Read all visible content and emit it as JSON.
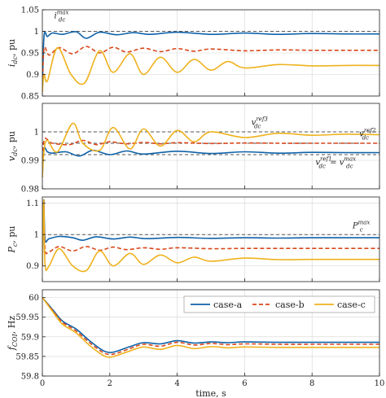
{
  "colors": {
    "case_a": "#0f62a8",
    "case_b": "#d9471a",
    "case_c": "#efb21e",
    "ref": "#555555"
  },
  "chart_data": [
    {
      "type": "line",
      "ylabel": "i_dc, pu",
      "xlim": [
        0,
        10
      ],
      "ylim": [
        0.85,
        1.05
      ],
      "yticks": [
        "0.85",
        "0.9",
        "0.95",
        "1",
        "1.05"
      ],
      "xticks": [
        "0",
        "2",
        "4",
        "6",
        "8",
        "10"
      ],
      "grid": true,
      "reference_lines": [
        {
          "y": 1.0
        }
      ],
      "annotations": [
        {
          "text": "i_dc^max",
          "x": 0.35,
          "y": 1.03
        }
      ],
      "series": [
        {
          "name": "case-a",
          "x": [
            0,
            0.05,
            0.15,
            0.3,
            0.6,
            1.0,
            1.3,
            1.7,
            2.2,
            2.7,
            3.2,
            4,
            5,
            6,
            7,
            8,
            9,
            10
          ],
          "y": [
            0.86,
            0.99,
            0.988,
            0.996,
            0.993,
            0.999,
            0.984,
            0.998,
            0.992,
            0.997,
            0.993,
            0.998,
            0.993,
            0.996,
            0.993,
            0.995,
            0.994,
            0.994
          ]
        },
        {
          "name": "case-b",
          "x": [
            0,
            0.05,
            0.2,
            0.5,
            0.9,
            1.3,
            1.7,
            2.1,
            2.5,
            3,
            3.5,
            4,
            4.5,
            5,
            6,
            7,
            8,
            9,
            10
          ],
          "y": [
            0.86,
            0.96,
            0.945,
            0.962,
            0.948,
            0.965,
            0.95,
            0.963,
            0.952,
            0.961,
            0.953,
            0.96,
            0.954,
            0.959,
            0.955,
            0.957,
            0.956,
            0.956,
            0.956
          ]
        },
        {
          "name": "case-c",
          "x": [
            0,
            0.05,
            0.15,
            0.45,
            0.85,
            1.25,
            1.7,
            2.1,
            2.6,
            3.0,
            3.5,
            4.0,
            4.5,
            5,
            5.5,
            6,
            7,
            8,
            9,
            10
          ],
          "y": [
            0.86,
            0.9,
            0.885,
            0.962,
            0.9,
            0.88,
            0.955,
            0.905,
            0.948,
            0.9,
            0.94,
            0.905,
            0.935,
            0.91,
            0.93,
            0.915,
            0.923,
            0.92,
            0.921,
            0.921
          ]
        }
      ]
    },
    {
      "type": "line",
      "ylabel": "v_dc, pu",
      "xlim": [
        0,
        10
      ],
      "ylim": [
        0.98,
        1.01
      ],
      "yticks": [
        "0.98",
        "0.99",
        "1"
      ],
      "xticks": [
        "0",
        "2",
        "4",
        "6",
        "8",
        "10"
      ],
      "grid": true,
      "reference_lines": [
        {
          "y": 1.0
        },
        {
          "y": 0.996
        },
        {
          "y": 0.992
        }
      ],
      "annotations": [
        {
          "text": "v_dc^ref3",
          "x": 6.2,
          "y": 1.0025
        },
        {
          "text": "v_dc^ref2",
          "x": 9.4,
          "y": 0.9985
        },
        {
          "text": "v_dc^ref1 = v_dc^max",
          "x": 8.1,
          "y": 0.9885
        }
      ],
      "series": [
        {
          "name": "case-a",
          "x": [
            0,
            0.05,
            0.15,
            0.3,
            0.7,
            1.1,
            1.5,
            2,
            2.5,
            3,
            4,
            5,
            6,
            7,
            8,
            9,
            10
          ],
          "y": [
            0.984,
            0.994,
            0.993,
            0.9925,
            0.993,
            0.9915,
            0.9935,
            0.992,
            0.9933,
            0.9922,
            0.9932,
            0.9924,
            0.993,
            0.9925,
            0.9928,
            0.9927,
            0.9927
          ]
        },
        {
          "name": "case-b",
          "x": [
            0,
            0.05,
            0.3,
            0.8,
            1.2,
            1.6,
            2.0,
            2.5,
            3,
            3.5,
            4,
            5,
            6,
            7,
            8,
            9,
            10
          ],
          "y": [
            0.984,
            0.997,
            0.996,
            0.9955,
            0.997,
            0.9955,
            0.9965,
            0.9958,
            0.9963,
            0.9958,
            0.9962,
            0.9959,
            0.9961,
            0.996,
            0.996,
            0.996,
            0.996
          ]
        },
        {
          "name": "case-c",
          "x": [
            0,
            0.05,
            0.15,
            0.45,
            0.9,
            1.2,
            1.7,
            2.1,
            2.6,
            3.0,
            3.5,
            4,
            4.5,
            5,
            6,
            7,
            8,
            9,
            10
          ],
          "y": [
            0.984,
            0.9935,
            0.997,
            0.993,
            1.003,
            0.996,
            0.9935,
            1.0015,
            0.994,
            1.001,
            0.995,
            1.0005,
            0.9965,
            1.0,
            0.998,
            0.9995,
            0.9988,
            0.9992,
            0.999
          ]
        }
      ]
    },
    {
      "type": "line",
      "ylabel": "P_c, pu",
      "xlim": [
        0,
        10
      ],
      "ylim": [
        0.85,
        1.12
      ],
      "yticks": [
        "0.9",
        "1",
        "1.1"
      ],
      "xticks": [
        "0",
        "2",
        "4",
        "6",
        "8",
        "10"
      ],
      "grid": true,
      "reference_lines": [
        {
          "y": 1.0
        }
      ],
      "annotations": [
        {
          "text": "P_c^max",
          "x": 9.2,
          "y": 1.02
        }
      ],
      "series": [
        {
          "name": "case-a",
          "x": [
            0,
            0.04,
            0.08,
            0.2,
            0.5,
            0.9,
            1.2,
            1.6,
            2.1,
            2.6,
            3.1,
            4,
            5,
            6,
            7,
            8,
            9,
            10
          ],
          "y": [
            0.9,
            1.11,
            0.985,
            0.987,
            0.994,
            0.99,
            0.982,
            0.993,
            0.986,
            0.992,
            0.987,
            0.991,
            0.988,
            0.99,
            0.989,
            0.99,
            0.99,
            0.99
          ]
        },
        {
          "name": "case-b",
          "x": [
            0,
            0.04,
            0.08,
            0.2,
            0.5,
            0.9,
            1.3,
            1.7,
            2.1,
            2.5,
            3.0,
            3.5,
            4,
            5,
            6,
            7,
            8,
            9,
            10
          ],
          "y": [
            0.9,
            1.11,
            0.955,
            0.945,
            0.962,
            0.948,
            0.962,
            0.95,
            0.96,
            0.952,
            0.958,
            0.953,
            0.958,
            0.955,
            0.956,
            0.956,
            0.956,
            0.956,
            0.956
          ]
        },
        {
          "name": "case-c",
          "x": [
            0,
            0.04,
            0.08,
            0.2,
            0.5,
            0.9,
            1.3,
            1.7,
            2.1,
            2.6,
            3.0,
            3.5,
            4,
            4.5,
            5,
            6,
            7,
            8,
            9,
            10
          ],
          "y": [
            0.9,
            1.11,
            0.905,
            0.9,
            0.955,
            0.9,
            0.885,
            0.948,
            0.9,
            0.94,
            0.905,
            0.935,
            0.91,
            0.928,
            0.915,
            0.925,
            0.92,
            0.921,
            0.921,
            0.921
          ]
        }
      ]
    },
    {
      "type": "line",
      "ylabel": "f_COI, Hz",
      "xlabel": "time, s",
      "xlim": [
        0,
        10
      ],
      "ylim": [
        59.8,
        60.02
      ],
      "yticks": [
        "59.8",
        "59.85",
        "59.9",
        "59.95",
        "60"
      ],
      "xticks": [
        "0",
        "2",
        "4",
        "6",
        "8",
        "10"
      ],
      "grid": true,
      "legend": {
        "placement": "top-right",
        "orientation": "horizontal"
      },
      "series": [
        {
          "name": "case-a",
          "x": [
            0,
            0.3,
            0.6,
            1.0,
            1.4,
            1.8,
            2.0,
            2.2,
            2.6,
            3.0,
            3.5,
            4.0,
            4.5,
            5,
            5.5,
            6,
            7,
            8,
            9,
            10
          ],
          "y": [
            60.0,
            59.97,
            59.94,
            59.92,
            59.89,
            59.865,
            59.86,
            59.863,
            59.875,
            59.885,
            59.882,
            59.89,
            59.884,
            59.887,
            59.885,
            59.887,
            59.886,
            59.886,
            59.886,
            59.886
          ]
        },
        {
          "name": "case-b",
          "x": [
            0,
            0.3,
            0.6,
            1.0,
            1.4,
            1.8,
            2.0,
            2.2,
            2.6,
            3.0,
            3.5,
            4.0,
            4.5,
            5,
            5.5,
            6,
            7,
            8,
            9,
            10
          ],
          "y": [
            60.0,
            59.968,
            59.937,
            59.915,
            59.885,
            59.86,
            59.855,
            59.858,
            59.87,
            59.881,
            59.876,
            59.886,
            59.879,
            59.883,
            59.88,
            59.882,
            59.881,
            59.881,
            59.881,
            59.881
          ]
        },
        {
          "name": "case-c",
          "x": [
            0,
            0.3,
            0.6,
            1.0,
            1.4,
            1.8,
            2.0,
            2.2,
            2.6,
            3.0,
            3.5,
            4.0,
            4.5,
            5,
            5.5,
            6,
            7,
            8,
            9,
            10
          ],
          "y": [
            60.0,
            59.965,
            59.932,
            59.91,
            59.878,
            59.853,
            59.848,
            59.852,
            59.864,
            59.874,
            59.868,
            59.878,
            59.87,
            59.875,
            59.872,
            59.874,
            59.873,
            59.873,
            59.873,
            59.873
          ]
        }
      ]
    }
  ]
}
